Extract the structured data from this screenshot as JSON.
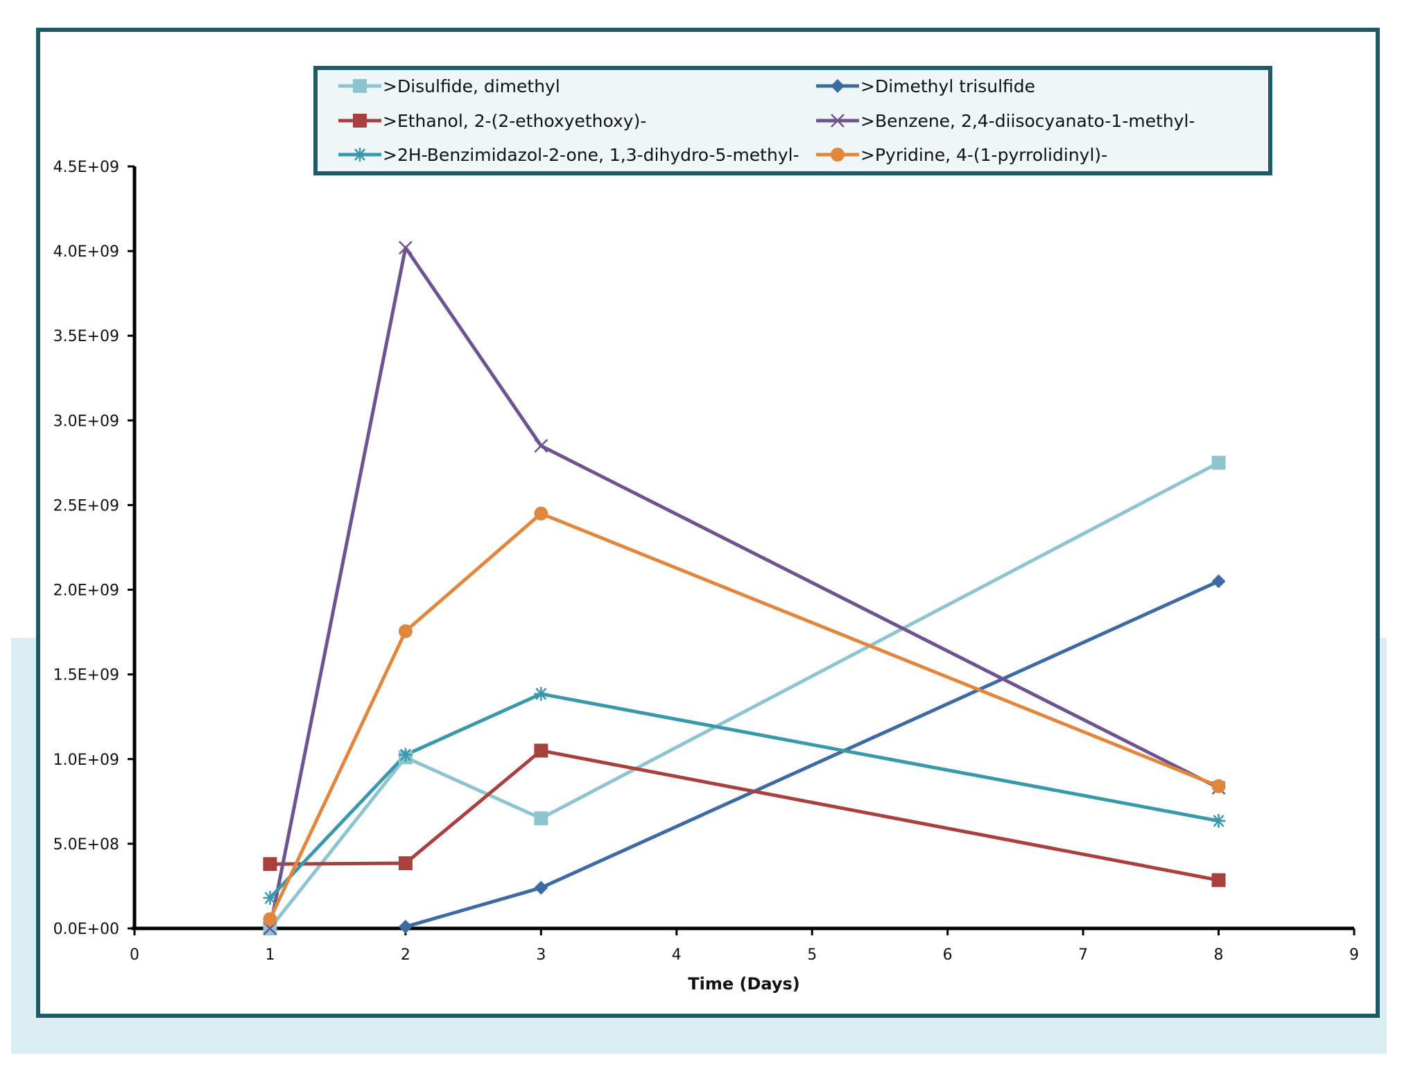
{
  "chart_data": {
    "type": "line",
    "title": "",
    "xlabel": "Time (Days)",
    "ylabel": "",
    "xlim": [
      0,
      9
    ],
    "ylim": [
      0,
      4500000000
    ],
    "x_ticks": [
      "0",
      "1",
      "2",
      "3",
      "4",
      "5",
      "6",
      "7",
      "8",
      "9"
    ],
    "y_ticks": [
      "0.0E+00",
      "5.0E+08",
      "1.0E+09",
      "1.5E+09",
      "2.0E+09",
      "2.5E+09",
      "3.0E+09",
      "3.5E+09",
      "4.0E+09",
      "4.5E+09"
    ],
    "legend_position": "top",
    "series": [
      {
        "name": ">Disulfide, dimethyl",
        "color": "#8ec3d0",
        "marker": "square",
        "points": [
          [
            1,
            0
          ],
          [
            2,
            1010000000
          ],
          [
            3,
            650000000
          ],
          [
            8,
            2750000000
          ]
        ]
      },
      {
        "name": ">Dimethyl trisulfide",
        "color": "#3e6aa3",
        "marker": "diamond",
        "points": [
          [
            2,
            10000000
          ],
          [
            3,
            240000000
          ],
          [
            8,
            2050000000
          ]
        ]
      },
      {
        "name": ">Ethanol, 2-(2-ethoxyethoxy)-",
        "color": "#a8403e",
        "marker": "square",
        "points": [
          [
            1,
            380000000
          ],
          [
            2,
            385000000
          ],
          [
            3,
            1050000000
          ],
          [
            8,
            285000000
          ]
        ]
      },
      {
        "name": ">Benzene, 2,4-diisocyanato-1-methyl-",
        "color": "#6e5390",
        "marker": "x",
        "points": [
          [
            1,
            0
          ],
          [
            2,
            4020000000
          ],
          [
            3,
            2850000000
          ],
          [
            8,
            830000000
          ]
        ]
      },
      {
        "name": ">2H-Benzimidazol-2-one, 1,3-dihydro-5-methyl-",
        "color": "#3a98ab",
        "marker": "star",
        "points": [
          [
            1,
            180000000
          ],
          [
            2,
            1025000000
          ],
          [
            3,
            1385000000
          ],
          [
            8,
            635000000
          ]
        ]
      },
      {
        "name": ">Pyridine, 4-(1-pyrrolidinyl)-",
        "color": "#e0873d",
        "marker": "circle",
        "points": [
          [
            1,
            55000000
          ],
          [
            2,
            1755000000
          ],
          [
            3,
            2450000000
          ],
          [
            8,
            840000000
          ]
        ]
      }
    ]
  }
}
